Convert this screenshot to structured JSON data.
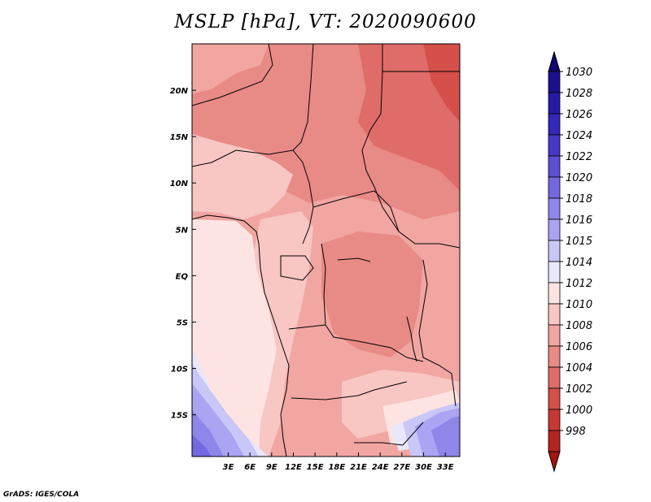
{
  "title": "MSLP [hPa], VT: 2020090600",
  "credit": "GrADS: IGES/COLA",
  "map": {
    "lon_range": [
      -2,
      35
    ],
    "lat_range": [
      -19.5,
      25
    ],
    "x_ticks": [
      {
        "lon": 3,
        "label": "3E"
      },
      {
        "lon": 6,
        "label": "6E"
      },
      {
        "lon": 9,
        "label": "9E"
      },
      {
        "lon": 12,
        "label": "12E"
      },
      {
        "lon": 15,
        "label": "15E"
      },
      {
        "lon": 18,
        "label": "18E"
      },
      {
        "lon": 21,
        "label": "21E"
      },
      {
        "lon": 24,
        "label": "24E"
      },
      {
        "lon": 27,
        "label": "27E"
      },
      {
        "lon": 30,
        "label": "30E"
      },
      {
        "lon": 33,
        "label": "33E"
      }
    ],
    "y_ticks": [
      {
        "lat": 20,
        "label": "20N"
      },
      {
        "lat": 15,
        "label": "15N"
      },
      {
        "lat": 10,
        "label": "10N"
      },
      {
        "lat": 5,
        "label": "5N"
      },
      {
        "lat": 0,
        "label": "EQ"
      },
      {
        "lat": -5,
        "label": "5S"
      },
      {
        "lat": -10,
        "label": "10S"
      },
      {
        "lat": -15,
        "label": "15S"
      }
    ]
  },
  "colorbar": {
    "levels": [
      {
        "label": "1030",
        "color": "#1a0f8c"
      },
      {
        "label": "1028",
        "color": "#241aa6"
      },
      {
        "label": "1026",
        "color": "#3326b8"
      },
      {
        "label": "1024",
        "color": "#4637c6"
      },
      {
        "label": "1022",
        "color": "#5c4fd4"
      },
      {
        "label": "1020",
        "color": "#7468e0"
      },
      {
        "label": "1018",
        "color": "#8f86ea"
      },
      {
        "label": "1016",
        "color": "#aaa4f2"
      },
      {
        "label": "1015",
        "color": "#c9c6f8"
      },
      {
        "label": "1014",
        "color": "#e8e7fc"
      },
      {
        "label": "1012",
        "color": "#fde4e2"
      },
      {
        "label": "1010",
        "color": "#f8c6c3"
      },
      {
        "label": "1008",
        "color": "#f1a6a2"
      },
      {
        "label": "1006",
        "color": "#e88a86"
      },
      {
        "label": "1004",
        "color": "#df6c68"
      },
      {
        "label": "1002",
        "color": "#d54f4b"
      },
      {
        "label": "1000",
        "color": "#c83733"
      },
      {
        "label": "998",
        "color": "#b52520"
      }
    ],
    "top_cap_color": "#10086e",
    "bottom_cap_color": "#a5150f"
  }
}
